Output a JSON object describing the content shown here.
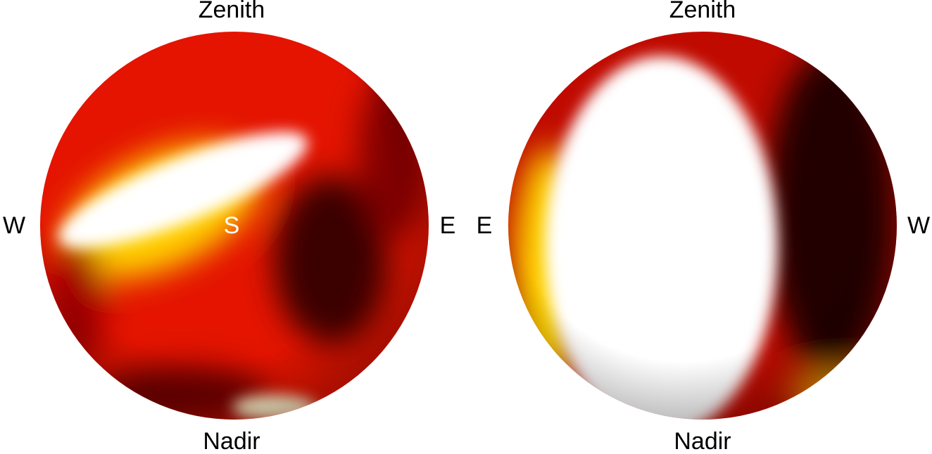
{
  "spheres": [
    {
      "top": "Zenith",
      "bottom": "Nadir",
      "left": "W",
      "right": "E",
      "center": "S"
    },
    {
      "top": "Zenith",
      "bottom": "Nadir",
      "left": "E",
      "right": "W"
    }
  ]
}
